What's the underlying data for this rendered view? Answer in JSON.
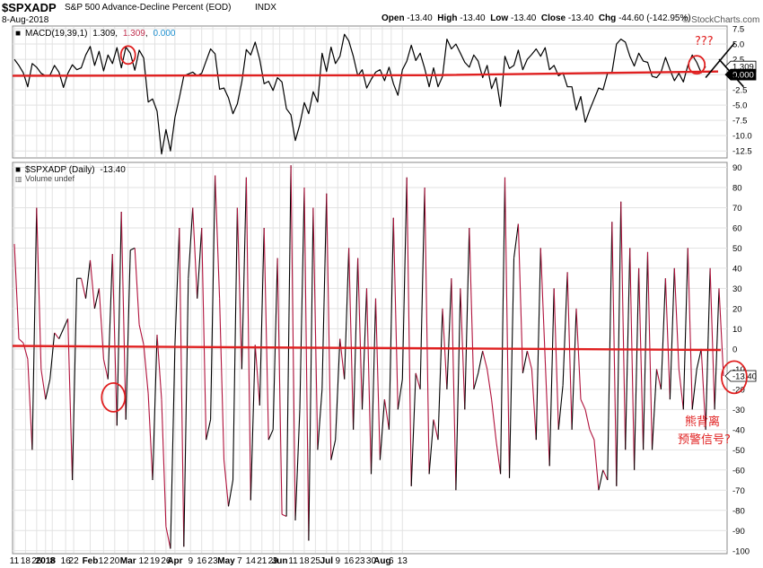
{
  "header": {
    "symbol": "$SPXADP",
    "name": "S&P 500 Advance-Decline Percent (EOD)",
    "exchange": "INDX",
    "date": "8-Aug-2018",
    "brand": "© StockCharts.com",
    "ohlc": [
      {
        "label": "Open",
        "value": "-13.40"
      },
      {
        "label": "High",
        "value": "-13.40"
      },
      {
        "label": "Low",
        "value": "-13.40"
      },
      {
        "label": "Close",
        "value": "-13.40"
      },
      {
        "label": "Chg",
        "value": "-44.60 (-142.95%)"
      }
    ]
  },
  "colors": {
    "grid": "#e2e2e2",
    "frame": "#888888",
    "up": "#000000",
    "down": "#b0123c",
    "annotation": "#e02020",
    "zero_tag": "#000000",
    "signal_value": "#c0304f",
    "zero_value": "#1e90d0"
  },
  "annotations": {
    "question": "???",
    "note_line1": "熊背离",
    "note_line2": "预警信号?"
  },
  "chart_data": [
    {
      "type": "line",
      "panel": "top",
      "legend_indicator": "MACD(19,39,1)",
      "legend_values": [
        "1.309",
        "1.309",
        "0.000"
      ],
      "legend_placement": "top-left",
      "y_ticks": [
        "7.5",
        "5.0",
        "2.5",
        "0.0",
        "-2.5",
        "-5.0",
        "-7.5",
        "-10.0",
        "-12.5"
      ],
      "ylim": [
        -13.5,
        7.8
      ],
      "last_value_tag": "1.309",
      "zero_tag": "0.000",
      "grid": true,
      "values": [
        2.5,
        1.5,
        0.3,
        -2.0,
        1.8,
        1.2,
        0.2,
        -0.2,
        -0.1,
        1.5,
        0.4,
        -2.1,
        0.2,
        1.6,
        0.8,
        1.1,
        3.2,
        4.6,
        1.5,
        3.8,
        0.6,
        3.2,
        1.8,
        4.4,
        1.1,
        4.5,
        3.5,
        0.7,
        4.0,
        2.7,
        -4.5,
        -4.0,
        -6.0,
        -13.0,
        -9.0,
        -12.5,
        -7.0,
        -3.8,
        -0.2,
        0.1,
        0.4,
        -0.2,
        0.2,
        2.2,
        4.2,
        3.4,
        -2.4,
        -2.2,
        -3.8,
        -6.4,
        -4.8,
        -1.2,
        4.1,
        3.2,
        5.3,
        2.5,
        -1.5,
        -1.1,
        -2.6,
        -0.5,
        -1.2,
        -5.6,
        -6.6,
        -10.8,
        -8.2,
        -4.6,
        -6.4,
        -2.8,
        -4.5,
        3.5,
        0.5,
        4.5,
        1.8,
        3.0,
        6.6,
        5.5,
        3.0,
        -0.2,
        0.8,
        -2.2,
        -0.8,
        0.4,
        0.8,
        -1.0,
        1.2,
        -1.5,
        -3.4,
        0.8,
        2.2,
        4.8,
        2.3,
        3.5,
        1.0,
        -2.0,
        1.1,
        -2.0,
        -0.3,
        5.8,
        4.2,
        5.0,
        3.5,
        2.0,
        1.2,
        3.2,
        2.2,
        -0.5,
        1.5,
        -2.3,
        -0.5,
        -5.2,
        3.0,
        1.0,
        1.5,
        4.0,
        0.8,
        2.5,
        3.3,
        4.2,
        3.0,
        4.4,
        0.8,
        1.5,
        -0.2,
        0.3,
        -2.0,
        -2.0,
        -5.8,
        -3.6,
        -7.8,
        -5.8,
        -4.0,
        -2.2,
        -2.5,
        0.2,
        0.4,
        5.0,
        5.8,
        5.3,
        3.0,
        1.4,
        3.5,
        2.2,
        2.0,
        -0.3,
        -0.5,
        0.4,
        2.8,
        0.8,
        -1.0,
        0.2,
        -1.2,
        1.5,
        3.2,
        2.0,
        0.3,
        1.309
      ]
    },
    {
      "type": "line",
      "panel": "bottom",
      "legend_indicator": "$SPXADP (Daily)",
      "legend_value": "-13.40",
      "volume_note": "Volume undef",
      "legend_placement": "top-left",
      "y_ticks": [
        "90",
        "80",
        "70",
        "60",
        "50",
        "40",
        "30",
        "20",
        "10",
        "0",
        "-10",
        "-20",
        "-30",
        "-40",
        "-50",
        "-60",
        "-70",
        "-80",
        "-90",
        "-100"
      ],
      "ylim": [
        -101,
        92
      ],
      "last_value_tag": "-13.40",
      "grid": true,
      "x_ticks": [
        {
          "i": 0,
          "label": "11"
        },
        {
          "i": 2.5,
          "label": "18"
        },
        {
          "i": 5,
          "label": "26"
        },
        {
          "i": 7,
          "label": "2018"
        },
        {
          "i": 8.5,
          "label": "8"
        },
        {
          "i": 11.5,
          "label": "16"
        },
        {
          "i": 13.3,
          "label": "22"
        },
        {
          "i": 17,
          "label": "Feb"
        },
        {
          "i": 20,
          "label": "12"
        },
        {
          "i": 22.5,
          "label": "20"
        },
        {
          "i": 25.5,
          "label": "Mar"
        },
        {
          "i": 29,
          "label": "12"
        },
        {
          "i": 31.5,
          "label": "19"
        },
        {
          "i": 34,
          "label": "26"
        },
        {
          "i": 36,
          "label": "Apr"
        },
        {
          "i": 39.5,
          "label": "9"
        },
        {
          "i": 42,
          "label": "16"
        },
        {
          "i": 44.5,
          "label": "23"
        },
        {
          "i": 47.5,
          "label": "May"
        },
        {
          "i": 50.5,
          "label": "7"
        },
        {
          "i": 53,
          "label": "14"
        },
        {
          "i": 55.5,
          "label": "21"
        },
        {
          "i": 58,
          "label": "29"
        },
        {
          "i": 59.5,
          "label": "Jun"
        },
        {
          "i": 62.5,
          "label": "11"
        },
        {
          "i": 65,
          "label": "18"
        },
        {
          "i": 67.5,
          "label": "25"
        },
        {
          "i": 70,
          "label": "Jul"
        },
        {
          "i": 72.5,
          "label": "9"
        },
        {
          "i": 75,
          "label": "16"
        },
        {
          "i": 77.5,
          "label": "23"
        },
        {
          "i": 80,
          "label": "30"
        },
        {
          "i": 82.5,
          "label": "Aug"
        },
        {
          "i": 84.5,
          "label": "6"
        },
        {
          "i": 87,
          "label": "13"
        }
      ],
      "values": [
        52,
        5,
        3,
        -5,
        -50,
        70,
        -10,
        -25,
        -15,
        8,
        5,
        10,
        15,
        -65,
        35,
        35,
        25,
        44,
        20,
        30,
        -5,
        -15,
        47,
        -38,
        68,
        -35,
        49,
        50,
        12,
        2,
        -22,
        -65,
        7,
        -25,
        -88,
        -99,
        2,
        60,
        -98,
        35,
        70,
        25,
        60,
        -45,
        -35,
        86,
        25,
        -55,
        -78,
        -65,
        70,
        -10,
        85,
        -75,
        2,
        -28,
        60,
        -45,
        -40,
        45,
        -82,
        -83,
        91,
        -85,
        -30,
        80,
        -95,
        70,
        -50,
        -20,
        77,
        -55,
        -45,
        5,
        -15,
        50,
        -40,
        45,
        -30,
        30,
        -62,
        25,
        -55,
        -25,
        -40,
        65,
        -30,
        -15,
        85,
        -68,
        -12,
        -20,
        80,
        -62,
        -35,
        -45,
        20,
        -20,
        35,
        -70,
        30,
        -30,
        60,
        -20,
        -12,
        -1,
        -10,
        -25,
        -45,
        -62,
        85,
        -64,
        45,
        62,
        -12,
        -1,
        -10,
        -45,
        50,
        -5,
        -58,
        30,
        -40,
        -18,
        38,
        -40,
        20,
        -25,
        -30,
        -40,
        -45,
        -70,
        -60,
        -65,
        63,
        -68,
        73,
        -50,
        50,
        -60,
        40,
        -50,
        48,
        -50,
        -10,
        -20,
        35,
        -25,
        40,
        -10,
        -30,
        50,
        -30,
        -10,
        0,
        -40,
        40,
        -30,
        30,
        -13.4
      ]
    }
  ]
}
